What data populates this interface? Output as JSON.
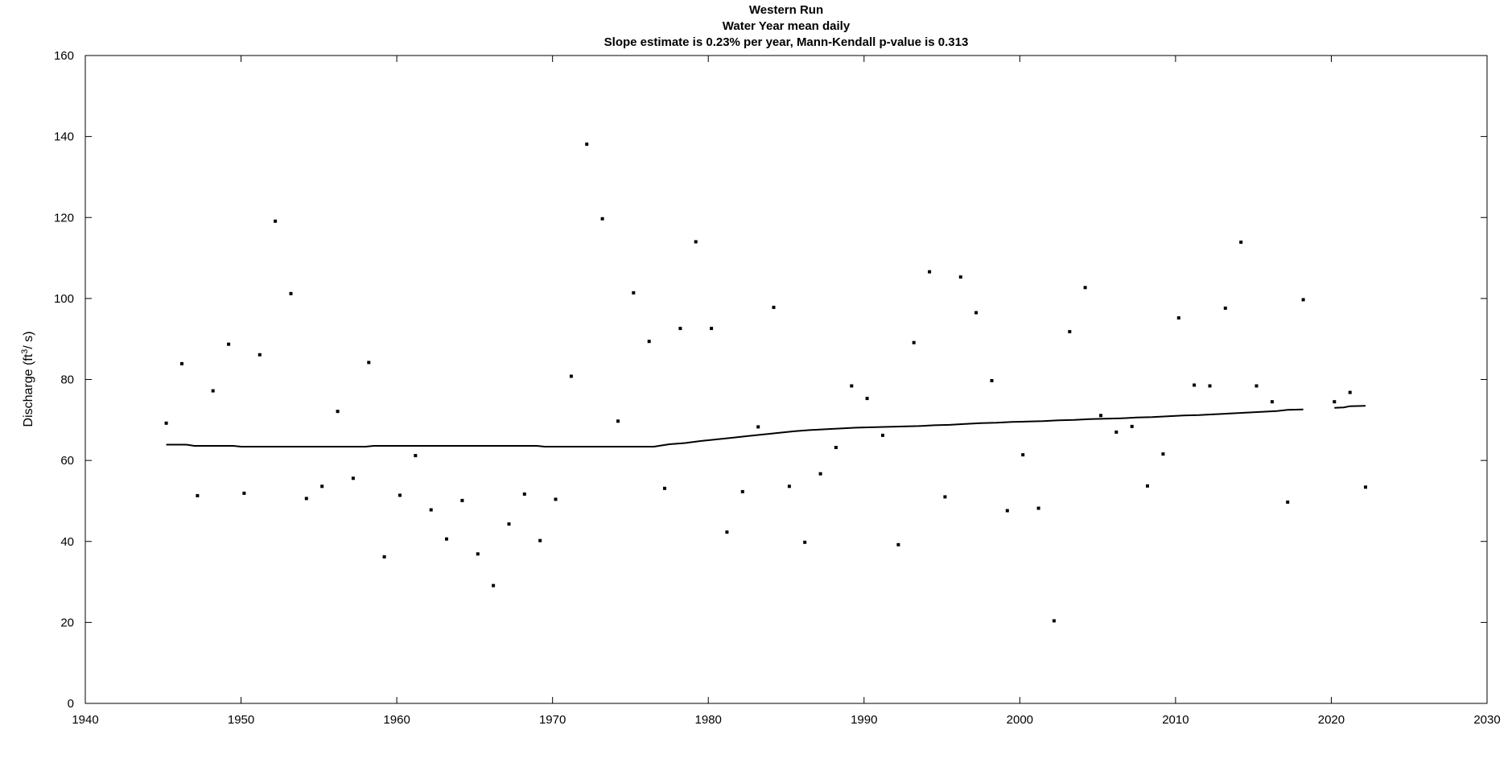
{
  "chart_data": {
    "type": "scatter",
    "title": "Western Run",
    "subtitle": "Water Year  mean daily",
    "annotation": "Slope estimate is 0.23% per year, Mann-Kendall p-value is 0.313",
    "xlabel": "",
    "ylabel": "Discharge (ft",
    "ylabel_superscript": "3",
    "ylabel_suffix": "/ s)",
    "xlim": [
      1940,
      2030
    ],
    "ylim": [
      0,
      160
    ],
    "xticks": [
      "1940",
      "1950",
      "1960",
      "1970",
      "1980",
      "1990",
      "2000",
      "2010",
      "2020",
      "2030"
    ],
    "yticks": [
      "0",
      "20",
      "40",
      "60",
      "80",
      "100",
      "120",
      "140",
      "160"
    ],
    "grid": false,
    "series": [
      {
        "kind": "points",
        "marker_color": "#000000",
        "points": [
          [
            1945.2,
            69.2
          ],
          [
            1946.2,
            83.9
          ],
          [
            1947.2,
            51.3
          ],
          [
            1948.2,
            77.2
          ],
          [
            1949.2,
            88.7
          ],
          [
            1950.2,
            51.9
          ],
          [
            1951.2,
            86.1
          ],
          [
            1952.2,
            119.1
          ],
          [
            1953.2,
            101.2
          ],
          [
            1954.2,
            50.6
          ],
          [
            1955.2,
            53.6
          ],
          [
            1956.2,
            72.1
          ],
          [
            1957.2,
            55.6
          ],
          [
            1958.2,
            84.2
          ],
          [
            1959.2,
            36.2
          ],
          [
            1960.2,
            51.4
          ],
          [
            1961.2,
            61.2
          ],
          [
            1962.2,
            47.8
          ],
          [
            1963.2,
            40.6
          ],
          [
            1964.2,
            50.1
          ],
          [
            1965.2,
            36.9
          ],
          [
            1966.2,
            29.1
          ],
          [
            1967.2,
            44.3
          ],
          [
            1968.2,
            51.7
          ],
          [
            1969.2,
            40.2
          ],
          [
            1970.2,
            50.4
          ],
          [
            1971.2,
            80.8
          ],
          [
            1972.2,
            138.1
          ],
          [
            1973.2,
            119.7
          ],
          [
            1974.2,
            69.7
          ],
          [
            1975.2,
            101.4
          ],
          [
            1976.2,
            89.4
          ],
          [
            1977.2,
            53.1
          ],
          [
            1978.2,
            92.6
          ],
          [
            1979.2,
            114.0
          ],
          [
            1980.2,
            92.6
          ],
          [
            1981.2,
            42.3
          ],
          [
            1982.2,
            52.3
          ],
          [
            1983.2,
            68.3
          ],
          [
            1984.2,
            97.8
          ],
          [
            1985.2,
            53.6
          ],
          [
            1986.2,
            39.8
          ],
          [
            1987.2,
            56.7
          ],
          [
            1988.2,
            63.2
          ],
          [
            1989.2,
            78.4
          ],
          [
            1990.2,
            75.3
          ],
          [
            1991.2,
            66.2
          ],
          [
            1992.2,
            39.2
          ],
          [
            1993.2,
            89.1
          ],
          [
            1994.2,
            106.6
          ],
          [
            1995.2,
            51.0
          ],
          [
            1996.2,
            105.3
          ],
          [
            1997.2,
            96.5
          ],
          [
            1998.2,
            79.7
          ],
          [
            1999.2,
            47.6
          ],
          [
            2000.2,
            61.4
          ],
          [
            2001.2,
            48.2
          ],
          [
            2002.2,
            20.4
          ],
          [
            2003.2,
            91.8
          ],
          [
            2004.2,
            102.7
          ],
          [
            2005.2,
            71.1
          ],
          [
            2006.2,
            67.0
          ],
          [
            2007.2,
            68.4
          ],
          [
            2008.2,
            53.7
          ],
          [
            2009.2,
            61.6
          ],
          [
            2010.2,
            95.2
          ],
          [
            2011.2,
            78.6
          ],
          [
            2012.2,
            78.4
          ],
          [
            2013.2,
            97.6
          ],
          [
            2014.2,
            113.9
          ],
          [
            2015.2,
            78.4
          ],
          [
            2016.2,
            74.5
          ],
          [
            2017.2,
            49.7
          ],
          [
            2018.2,
            99.7
          ],
          [
            2020.2,
            74.5
          ],
          [
            2021.2,
            76.8
          ],
          [
            2022.2,
            53.4
          ]
        ]
      },
      {
        "kind": "line",
        "line_color": "#000000",
        "segments": [
          [
            [
              1945.2,
              63.9
            ],
            [
              1946.5,
              63.9
            ],
            [
              1947.0,
              63.6
            ],
            [
              1949.5,
              63.6
            ],
            [
              1950.0,
              63.4
            ],
            [
              1958.0,
              63.4
            ],
            [
              1958.5,
              63.6
            ],
            [
              1969.0,
              63.6
            ],
            [
              1969.5,
              63.4
            ],
            [
              1976.5,
              63.4
            ],
            [
              1977.5,
              64.0
            ],
            [
              1978.5,
              64.3
            ],
            [
              1979.5,
              64.8
            ],
            [
              1980.5,
              65.2
            ],
            [
              1981.5,
              65.6
            ],
            [
              1982.5,
              66.0
            ],
            [
              1983.5,
              66.4
            ],
            [
              1984.5,
              66.8
            ],
            [
              1985.5,
              67.2
            ],
            [
              1986.5,
              67.5
            ],
            [
              1987.5,
              67.7
            ],
            [
              1988.5,
              67.9
            ],
            [
              1989.5,
              68.1
            ],
            [
              1990.5,
              68.2
            ],
            [
              1991.5,
              68.3
            ],
            [
              1992.5,
              68.4
            ],
            [
              1993.5,
              68.5
            ],
            [
              1994.5,
              68.7
            ],
            [
              1995.5,
              68.8
            ],
            [
              1996.5,
              69.0
            ],
            [
              1997.5,
              69.2
            ],
            [
              1998.5,
              69.3
            ],
            [
              1999.5,
              69.5
            ],
            [
              2000.5,
              69.6
            ],
            [
              2001.5,
              69.7
            ],
            [
              2002.5,
              69.9
            ],
            [
              2003.5,
              70.0
            ],
            [
              2004.5,
              70.2
            ],
            [
              2005.5,
              70.3
            ],
            [
              2006.5,
              70.4
            ],
            [
              2007.5,
              70.6
            ],
            [
              2008.5,
              70.7
            ],
            [
              2009.5,
              70.9
            ],
            [
              2010.5,
              71.1
            ],
            [
              2011.5,
              71.2
            ],
            [
              2012.5,
              71.4
            ],
            [
              2013.5,
              71.6
            ],
            [
              2014.5,
              71.8
            ],
            [
              2015.5,
              72.0
            ],
            [
              2016.5,
              72.2
            ],
            [
              2017.2,
              72.5
            ],
            [
              2018.2,
              72.6
            ]
          ],
          [
            [
              2020.2,
              73.0
            ],
            [
              2020.8,
              73.1
            ],
            [
              2021.2,
              73.4
            ],
            [
              2022.2,
              73.5
            ]
          ]
        ]
      }
    ]
  }
}
